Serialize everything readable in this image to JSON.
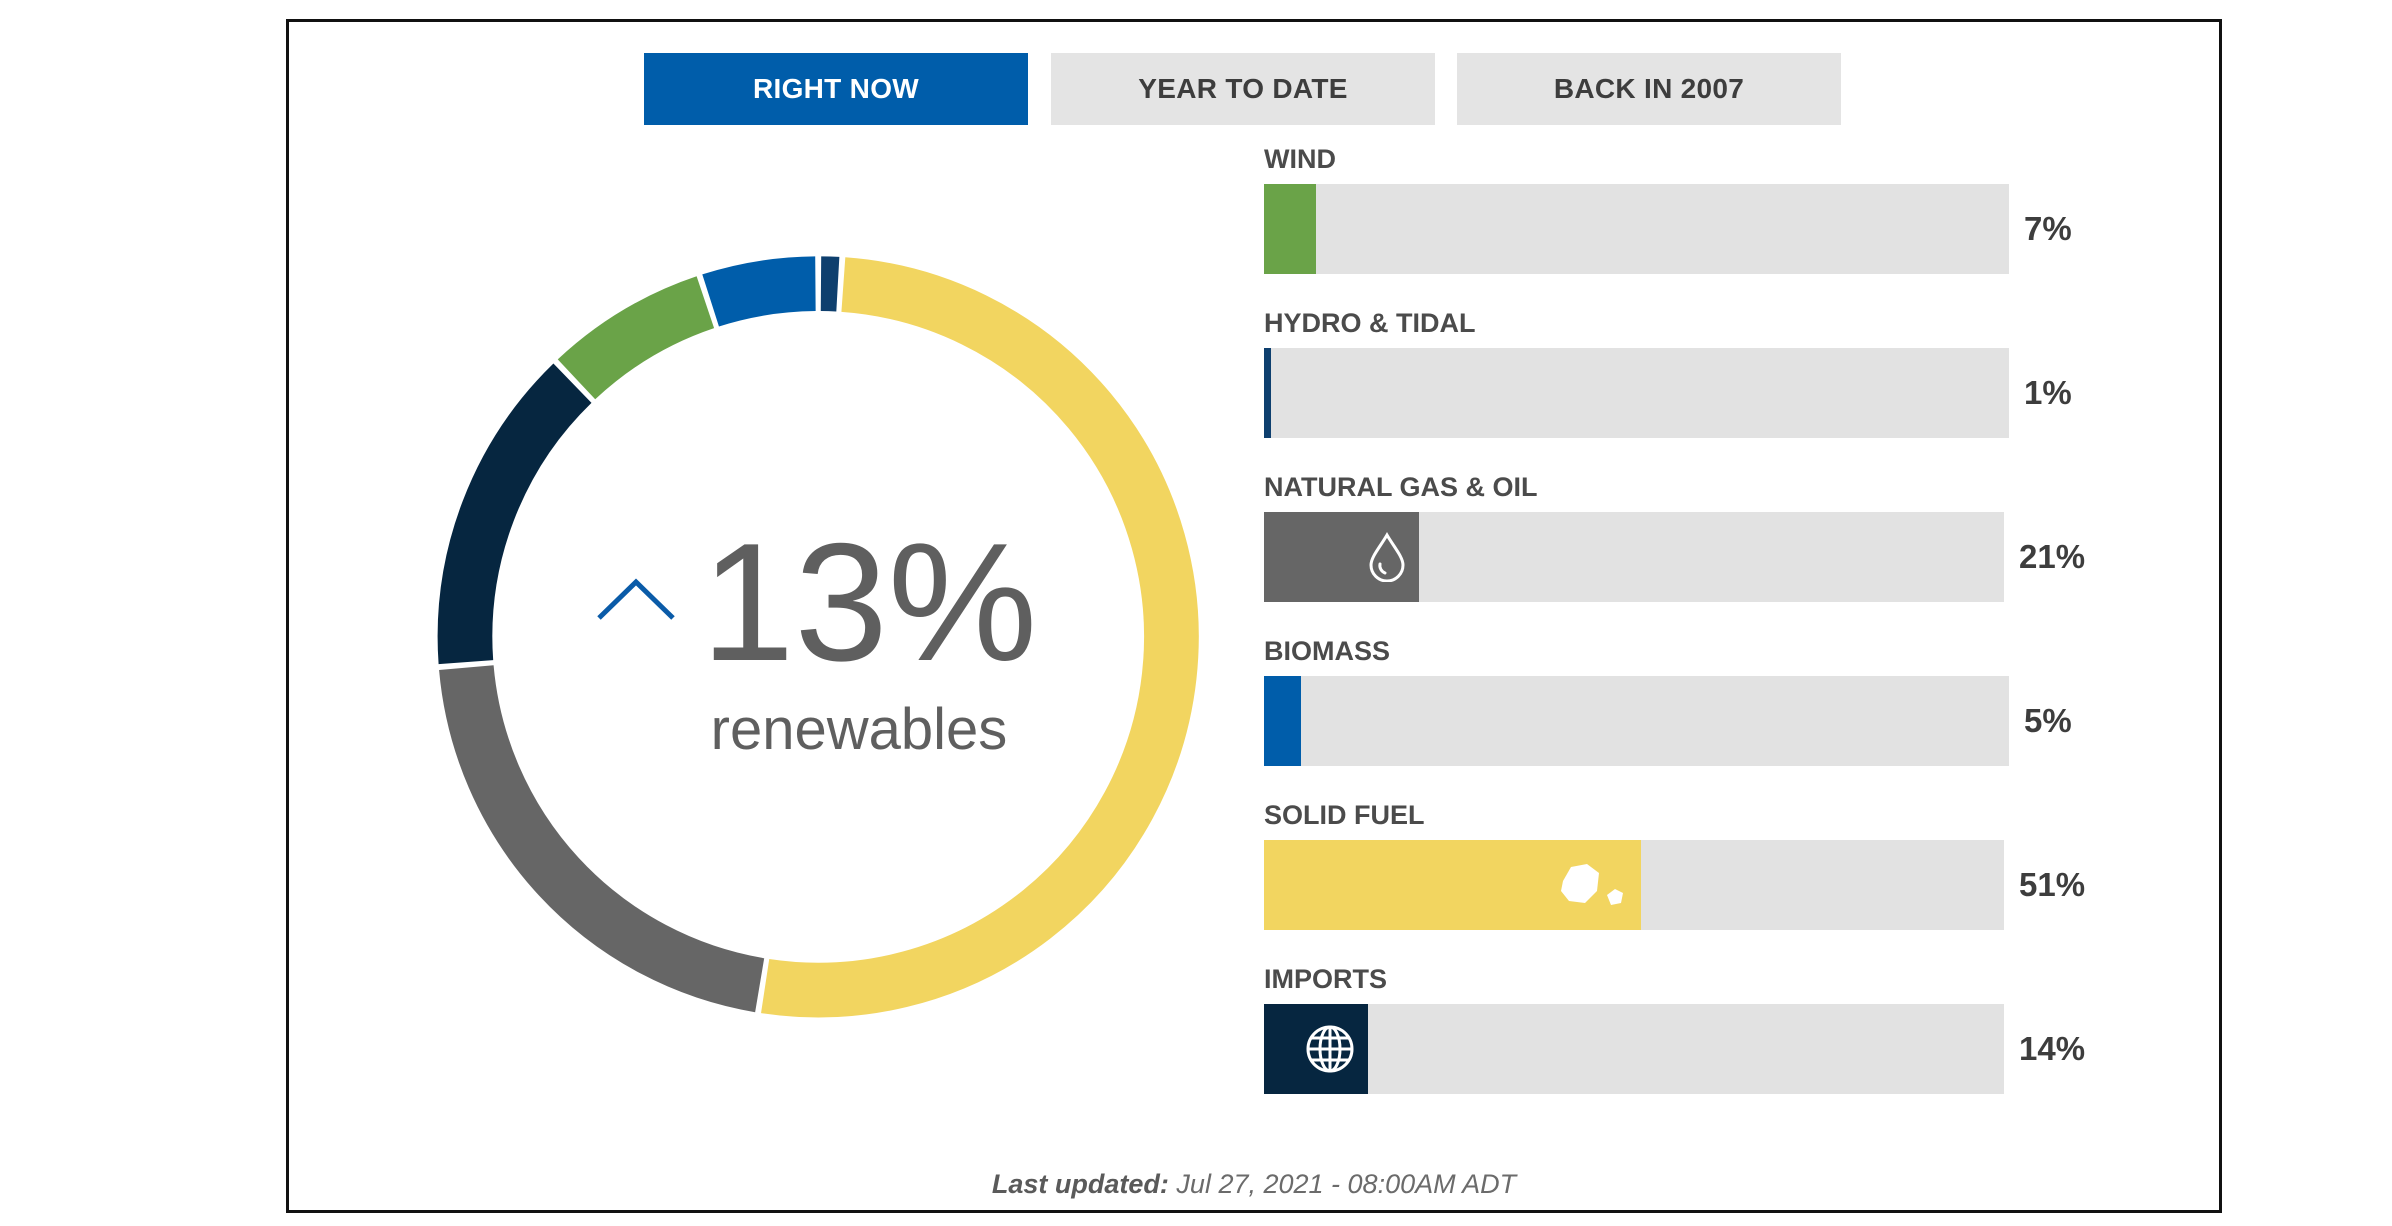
{
  "tabs": [
    {
      "label": "RIGHT NOW",
      "active": true
    },
    {
      "label": "YEAR TO DATE",
      "active": false
    },
    {
      "label": "BACK IN 2007",
      "active": false
    }
  ],
  "summary": {
    "value": "13%",
    "caption": "renewables",
    "trend_icon": "chevron-up-icon"
  },
  "footer": {
    "label": "Last updated:",
    "timestamp": "Jul 27, 2021 - 08:00AM ADT"
  },
  "chart_data": [
    {
      "type": "pie",
      "style": "donut",
      "categories": [
        "Wind",
        "Hydro & Tidal",
        "Natural Gas & Oil",
        "Biomass",
        "Solid Fuel",
        "Imports"
      ],
      "values": [
        7,
        1,
        21,
        5,
        51,
        14
      ],
      "colors": [
        "#6aa348",
        "#0e3f6e",
        "#666666",
        "#005daa",
        "#f2d560",
        "#062640"
      ],
      "order_clockwise_from_top": [
        "Hydro & Tidal",
        "Solid Fuel",
        "Natural Gas & Oil",
        "Imports",
        "Wind",
        "Biomass"
      ]
    },
    {
      "type": "bar",
      "orientation": "horizontal",
      "categories": [
        "WIND",
        "HYDRO & TIDAL",
        "NATURAL GAS & OIL",
        "BIOMASS",
        "SOLID FUEL",
        "IMPORTS"
      ],
      "values": [
        7,
        1,
        21,
        5,
        51,
        14
      ],
      "value_labels": [
        "7%",
        "1%",
        "21%",
        "5%",
        "51%",
        "14%"
      ],
      "xlim": [
        0,
        100
      ],
      "colors": [
        "#6aa348",
        "#0e3f6e",
        "#666666",
        "#005daa",
        "#f2d560",
        "#062640"
      ],
      "icons": [
        "",
        "",
        "droplet-icon",
        "",
        "coal-icon",
        "globe-icon"
      ],
      "track_color": "#e2e2e2"
    }
  ]
}
